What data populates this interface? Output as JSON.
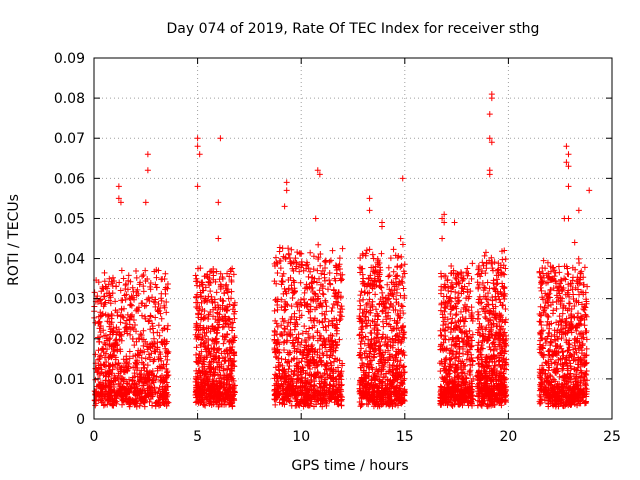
{
  "chart_data": {
    "type": "scatter",
    "title": "Day 074 of 2019, Rate Of TEC Index for receiver sthg",
    "xlabel": "GPS time / hours",
    "ylabel": "ROTI / TECUs",
    "xlim": [
      0,
      25
    ],
    "ylim": [
      0,
      0.09
    ],
    "xticks": [
      0,
      5,
      10,
      15,
      20,
      25
    ],
    "yticks": [
      0,
      0.01,
      0.02,
      0.03,
      0.04,
      0.05,
      0.06,
      0.07,
      0.08,
      0.09
    ],
    "grid": true,
    "legend": "none",
    "marker": "+",
    "series_color": "#ff0000",
    "clusters": [
      {
        "x": [
          0.0,
          3.6
        ],
        "base": 0.012,
        "spread": 0.02,
        "n": 900
      },
      {
        "x": [
          4.9,
          6.8
        ],
        "base": 0.012,
        "spread": 0.02,
        "n": 700
      },
      {
        "x": [
          8.7,
          12.0
        ],
        "base": 0.012,
        "spread": 0.025,
        "n": 1000
      },
      {
        "x": [
          12.8,
          15.0
        ],
        "base": 0.012,
        "spread": 0.025,
        "n": 800
      },
      {
        "x": [
          16.7,
          18.3
        ],
        "base": 0.01,
        "spread": 0.022,
        "n": 600
      },
      {
        "x": [
          18.5,
          19.9
        ],
        "base": 0.01,
        "spread": 0.025,
        "n": 600
      },
      {
        "x": [
          21.5,
          23.8
        ],
        "base": 0.012,
        "spread": 0.022,
        "n": 800
      }
    ],
    "highlights": [
      {
        "x": 1.2,
        "y": 0.058
      },
      {
        "x": 1.2,
        "y": 0.055
      },
      {
        "x": 1.3,
        "y": 0.054
      },
      {
        "x": 2.6,
        "y": 0.066
      },
      {
        "x": 2.6,
        "y": 0.062
      },
      {
        "x": 2.5,
        "y": 0.054
      },
      {
        "x": 5.0,
        "y": 0.07
      },
      {
        "x": 5.0,
        "y": 0.068
      },
      {
        "x": 5.1,
        "y": 0.066
      },
      {
        "x": 5.0,
        "y": 0.058
      },
      {
        "x": 6.1,
        "y": 0.07
      },
      {
        "x": 6.0,
        "y": 0.054
      },
      {
        "x": 6.0,
        "y": 0.045
      },
      {
        "x": 9.3,
        "y": 0.059
      },
      {
        "x": 9.3,
        "y": 0.057
      },
      {
        "x": 9.2,
        "y": 0.053
      },
      {
        "x": 10.8,
        "y": 0.062
      },
      {
        "x": 10.9,
        "y": 0.061
      },
      {
        "x": 10.7,
        "y": 0.05
      },
      {
        "x": 13.3,
        "y": 0.055
      },
      {
        "x": 13.3,
        "y": 0.052
      },
      {
        "x": 13.9,
        "y": 0.049
      },
      {
        "x": 13.9,
        "y": 0.048
      },
      {
        "x": 14.9,
        "y": 0.06
      },
      {
        "x": 14.8,
        "y": 0.045
      },
      {
        "x": 16.9,
        "y": 0.051
      },
      {
        "x": 16.8,
        "y": 0.05
      },
      {
        "x": 16.9,
        "y": 0.049
      },
      {
        "x": 17.4,
        "y": 0.049
      },
      {
        "x": 16.8,
        "y": 0.045
      },
      {
        "x": 19.2,
        "y": 0.081
      },
      {
        "x": 19.2,
        "y": 0.08
      },
      {
        "x": 19.1,
        "y": 0.076
      },
      {
        "x": 19.1,
        "y": 0.07
      },
      {
        "x": 19.2,
        "y": 0.069
      },
      {
        "x": 19.1,
        "y": 0.062
      },
      {
        "x": 19.1,
        "y": 0.061
      },
      {
        "x": 19.8,
        "y": 0.042
      },
      {
        "x": 22.8,
        "y": 0.068
      },
      {
        "x": 22.9,
        "y": 0.066
      },
      {
        "x": 22.8,
        "y": 0.064
      },
      {
        "x": 22.9,
        "y": 0.063
      },
      {
        "x": 22.9,
        "y": 0.058
      },
      {
        "x": 22.7,
        "y": 0.05
      },
      {
        "x": 22.9,
        "y": 0.05
      },
      {
        "x": 23.2,
        "y": 0.044
      },
      {
        "x": 23.4,
        "y": 0.052
      },
      {
        "x": 23.9,
        "y": 0.057
      },
      {
        "x": 23.8,
        "y": 0.033
      }
    ]
  }
}
